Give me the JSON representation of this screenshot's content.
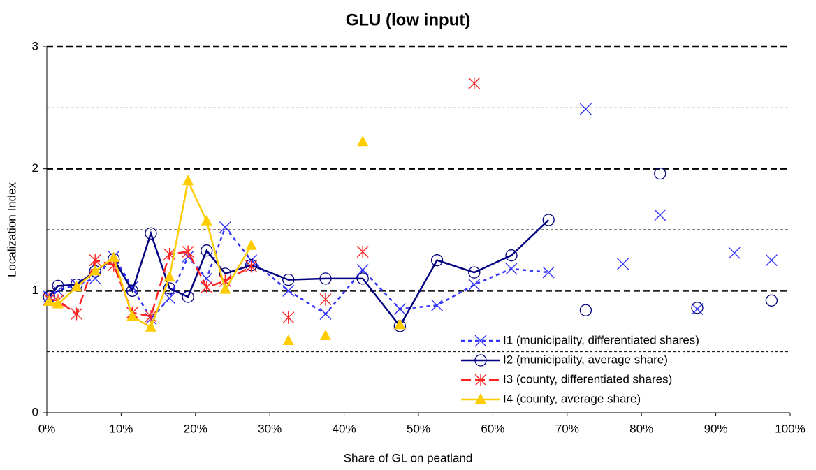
{
  "chart_data": {
    "type": "line",
    "title": "GLU (low input)",
    "x_label": "Share of GL on peatland",
    "y_label": "Localization Index",
    "xlim": [
      0,
      100
    ],
    "xticks": [
      {
        "value": 0,
        "label": "0%"
      },
      {
        "value": 10,
        "label": "10%"
      },
      {
        "value": 20,
        "label": "20%"
      },
      {
        "value": 30,
        "label": "30%"
      },
      {
        "value": 40,
        "label": "40%"
      },
      {
        "value": 50,
        "label": "50%"
      },
      {
        "value": 60,
        "label": "60%"
      },
      {
        "value": 70,
        "label": "70%"
      },
      {
        "value": 80,
        "label": "80%"
      },
      {
        "value": 90,
        "label": "90%"
      },
      {
        "value": 100,
        "label": "100%"
      }
    ],
    "ylim": [
      0,
      3
    ],
    "yticks": [
      0,
      1,
      2,
      3
    ],
    "minor_yticks": [
      0.5,
      1.5,
      2.5
    ],
    "grid": true,
    "legend": "bottom-right",
    "x": [
      0.3,
      1.5,
      4,
      6.5,
      9,
      11.5,
      14,
      16.5,
      19,
      21.5,
      24,
      27.5,
      32.5,
      37.5,
      42.5,
      47.5,
      52.5,
      57.5,
      62.5,
      67.5,
      72.5,
      77.5,
      82.5,
      87.5,
      92.5,
      97.5
    ],
    "series": [
      {
        "name": "I1 (municipality, differentiated shares)",
        "color": "#3333ff",
        "marker": "x",
        "dash": "dotted",
        "connect_to_x": 67.5,
        "values": [
          0.95,
          1.0,
          1.05,
          1.1,
          1.28,
          1.03,
          0.77,
          0.94,
          1.28,
          1.1,
          1.52,
          1.25,
          1.0,
          0.81,
          1.17,
          0.85,
          0.88,
          1.05,
          1.18,
          1.15,
          2.49,
          1.22,
          1.62,
          0.85,
          1.31,
          1.25
        ]
      },
      {
        "name": "I2 (municipality, average share)",
        "color": "#000080",
        "marker": "circle",
        "dash": "solid",
        "connect_to_x": 67.5,
        "values": [
          0.95,
          1.04,
          1.05,
          1.16,
          1.26,
          1.0,
          1.47,
          1.02,
          0.95,
          1.33,
          1.14,
          1.21,
          1.09,
          1.1,
          1.1,
          0.71,
          1.25,
          1.15,
          1.29,
          1.58,
          0.84,
          null,
          1.96,
          0.86,
          null,
          0.92
        ]
      },
      {
        "name": "I3 (county,  differentiated shares)",
        "color": "#ff2020",
        "marker": "asterisk",
        "dash": "dashed",
        "connect_to_x": 27.5,
        "values": [
          0.93,
          0.92,
          0.81,
          1.25,
          1.21,
          0.82,
          0.79,
          1.3,
          1.32,
          1.03,
          1.08,
          1.2,
          0.78,
          0.93,
          1.32,
          null,
          null,
          2.7,
          null,
          null,
          null,
          null,
          null,
          null,
          null,
          null
        ]
      },
      {
        "name": "I4 (county, average share)",
        "color": "#ffcc00",
        "marker": "triangle",
        "dash": "solid",
        "connect_to_x": 27.5,
        "values": [
          0.91,
          0.89,
          1.03,
          1.16,
          1.27,
          0.79,
          0.7,
          1.11,
          1.9,
          1.57,
          1.01,
          1.37,
          0.59,
          0.63,
          2.22,
          0.72,
          null,
          null,
          null,
          null,
          null,
          null,
          null,
          null,
          null,
          null
        ]
      }
    ]
  }
}
